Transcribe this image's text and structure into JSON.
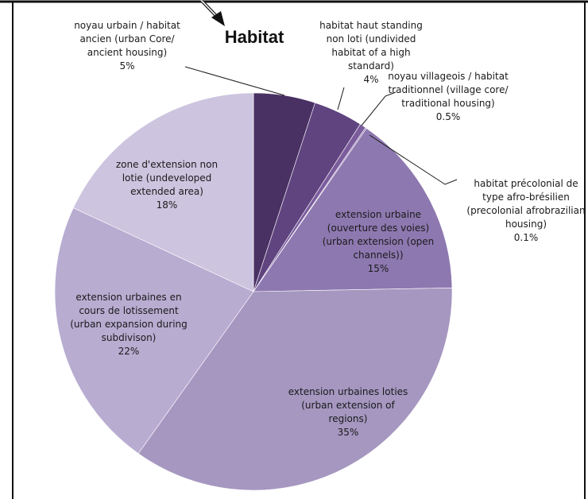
{
  "chart_data": {
    "type": "pie",
    "title": "Habitat",
    "start_angle_deg": 0,
    "direction": "clockwise",
    "slices": [
      {
        "label": [
          "noyau urbain / habitat",
          "ancien (urban Core/",
          "ancient housing)",
          "5%"
        ],
        "value": 5,
        "color": "#4a3164"
      },
      {
        "label": [
          "habitat haut standing",
          "non loti (undivided",
          "habitat of a high",
          "standard)",
          "4%"
        ],
        "value": 4,
        "color": "#5f4480"
      },
      {
        "label": [
          "noyau villageois / habitat",
          "traditionnel (village core/",
          "traditional housing)",
          "0.5%"
        ],
        "value": 0.5,
        "color": "#7a5c9c"
      },
      {
        "label": [
          "habitat précolonial de",
          "type afro-brésilien",
          "(precolonial afrobrazilian",
          "housing)",
          "0.1%"
        ],
        "value": 0.1,
        "color": "#8a6ead"
      },
      {
        "label": [
          "extension urbaine",
          "(ouverture des voies)",
          "(urban extension (open",
          "channels))",
          "15%"
        ],
        "value": 15,
        "color": "#8e78b0"
      },
      {
        "label": [
          "extension urbaines loties",
          "(urban extension of",
          "regions)",
          "35%"
        ],
        "value": 35,
        "color": "#a597c0"
      },
      {
        "label": [
          "extension urbaines en",
          "cours de lotissement",
          "(urban expansion during",
          "subdivison)",
          "22%"
        ],
        "value": 22,
        "color": "#b8acd1"
      },
      {
        "label": [
          "zone d'extension non",
          "lotie (undeveloped",
          "extended area)",
          "18%"
        ],
        "value": 18,
        "color": "#cdc4df"
      }
    ]
  }
}
